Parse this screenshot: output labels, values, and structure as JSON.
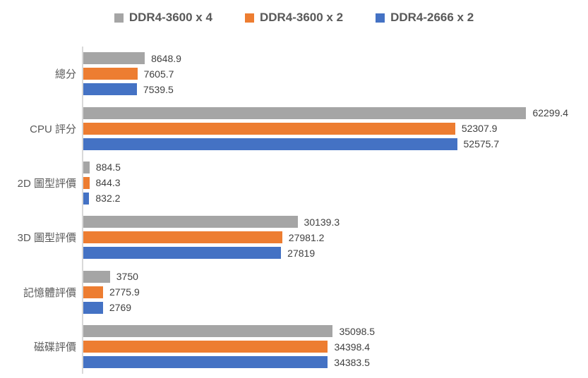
{
  "chart_data": {
    "type": "bar",
    "orientation": "horizontal",
    "title": "",
    "categories": [
      "總分",
      "CPU 評分",
      "2D 圖型評價",
      "3D 圖型評價",
      "記憶體評價",
      "磁碟評價"
    ],
    "series": [
      {
        "name": "DDR4-3600 x 4",
        "color": "#A5A5A5",
        "values": [
          8648.9,
          62299.4,
          884.5,
          30139.3,
          3750,
          35098.5
        ],
        "labels": [
          "8648.9",
          "62299.4",
          "884.5",
          "30139.3",
          "3750",
          "35098.5"
        ]
      },
      {
        "name": "DDR4-3600 x 2",
        "color": "#ED7D31",
        "values": [
          7605.7,
          52307.9,
          844.3,
          27981.2,
          2775.9,
          34398.4
        ],
        "labels": [
          "7605.7",
          "52307.9",
          "844.3",
          "27981.2",
          "2775.9",
          "34398.4"
        ]
      },
      {
        "name": "DDR4-2666 x 2",
        "color": "#4472C4",
        "values": [
          7539.5,
          52575.7,
          832.2,
          27819,
          2769,
          34383.5
        ],
        "labels": [
          "7539.5",
          "52575.7",
          "832.2",
          "27819",
          "2769",
          "34383.5"
        ]
      }
    ],
    "xlim": [
      0,
      70000
    ],
    "grid": false,
    "legend_position": "top",
    "axis_line_color": "#D9D9D9",
    "value_label_color": "#404040",
    "category_label_color": "#595959"
  }
}
